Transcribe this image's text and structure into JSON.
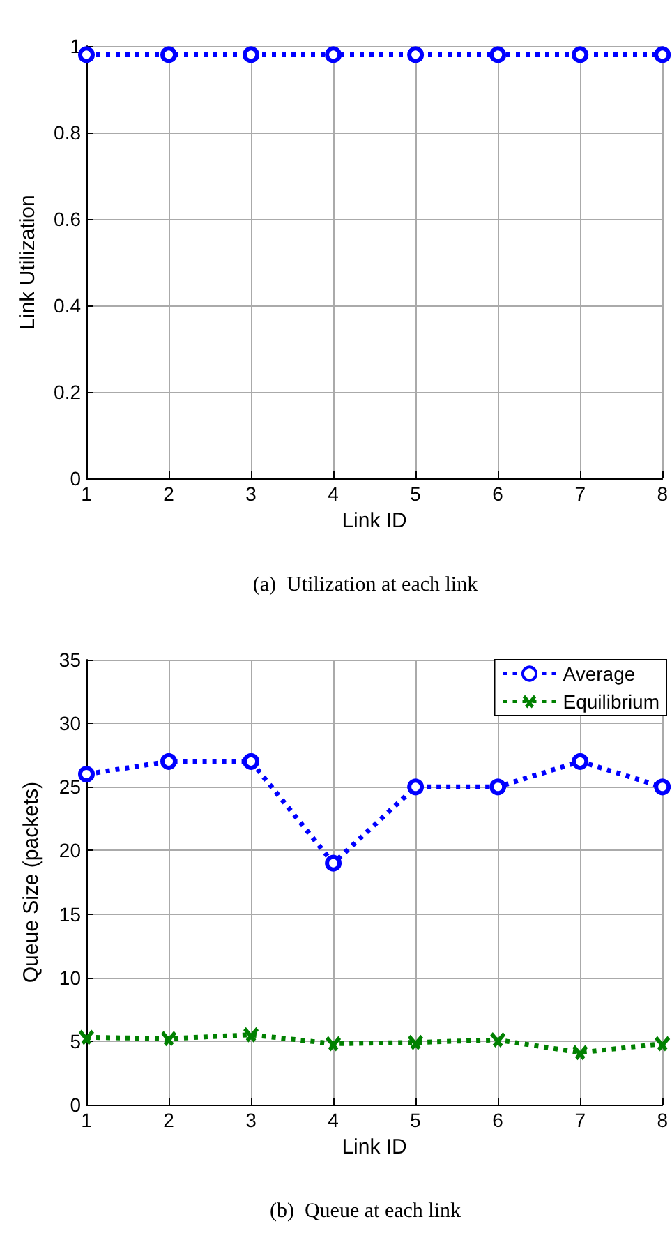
{
  "chart_data": [
    {
      "type": "line",
      "title": "(a)  Utilization at each link",
      "xlabel": "Link ID",
      "ylabel": "Link Utilization",
      "x": [
        1,
        2,
        3,
        4,
        5,
        6,
        7,
        8
      ],
      "xlim": [
        1,
        8
      ],
      "xticks": [
        1,
        2,
        3,
        4,
        5,
        6,
        7,
        8
      ],
      "ylim": [
        0,
        1
      ],
      "yticks": [
        0,
        0.2,
        0.4,
        0.6,
        0.8,
        1
      ],
      "grid": true,
      "legend": false,
      "series": [
        {
          "color": "#0000ff",
          "marker": "circle",
          "line_style": "dotted",
          "values": [
            0.98,
            0.98,
            0.98,
            0.98,
            0.98,
            0.98,
            0.98,
            0.98
          ]
        }
      ]
    },
    {
      "type": "line",
      "title": "(b)  Queue at each link",
      "xlabel": "Link ID",
      "ylabel": "Queue Size (packets)",
      "x": [
        1,
        2,
        3,
        4,
        5,
        6,
        7,
        8
      ],
      "xlim": [
        1,
        8
      ],
      "xticks": [
        1,
        2,
        3,
        4,
        5,
        6,
        7,
        8
      ],
      "ylim": [
        0,
        35
      ],
      "yticks": [
        0,
        5,
        10,
        15,
        20,
        25,
        30,
        35
      ],
      "grid": true,
      "legend": "top right",
      "series": [
        {
          "name": "Average",
          "color": "#0000ff",
          "marker": "circle",
          "line_style": "dotted",
          "values": [
            26,
            27,
            27,
            19,
            25,
            25,
            27,
            25
          ]
        },
        {
          "name": "Equilibrium",
          "color": "#008000",
          "marker": "cross",
          "line_style": "dotted",
          "values": [
            5.3,
            5.2,
            5.5,
            4.8,
            4.9,
            5.1,
            4.1,
            4.8
          ]
        }
      ]
    }
  ]
}
